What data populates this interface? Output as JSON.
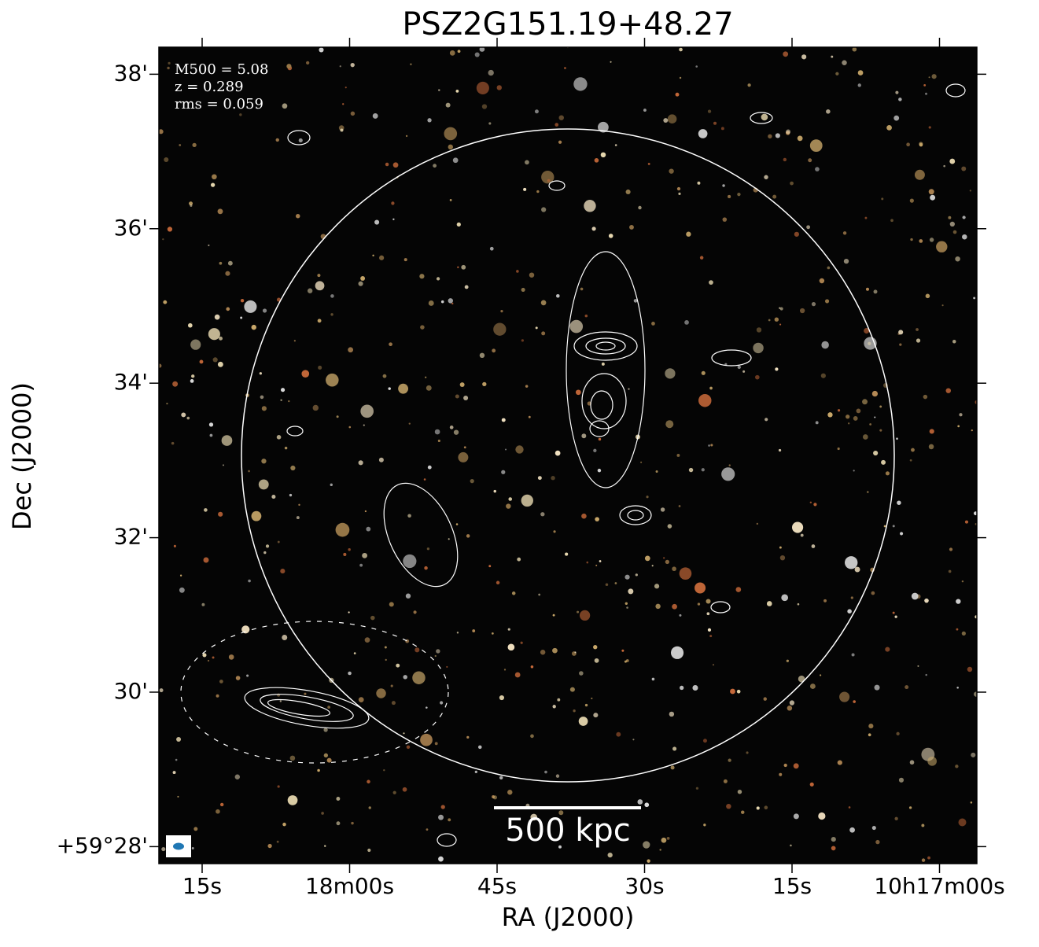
{
  "chart_data": {
    "type": "image",
    "title": "PSZ2G151.19+48.27",
    "xlabel": "RA (J2000)",
    "ylabel": "Dec (J2000)",
    "annotations": [
      "M500 = 5.08",
      "z = 0.289",
      "rms = 0.059"
    ],
    "scalebar_label": "500 kpc",
    "xlim": [
      79.4,
      -3.8
    ],
    "xticks": [
      {
        "value": 75,
        "label": "15s"
      },
      {
        "value": 60,
        "label": "18m00s"
      },
      {
        "value": 45,
        "label": "45s"
      },
      {
        "value": 30,
        "label": "30s"
      },
      {
        "value": 15,
        "label": "15s"
      },
      {
        "value": 0,
        "label": "10h17m00s"
      }
    ],
    "ylim": [
      27.78,
      38.35
    ],
    "yticks": [
      {
        "value": 28,
        "label": "+59°28'"
      },
      {
        "value": 30,
        "label": "30'"
      },
      {
        "value": 32,
        "label": "32'"
      },
      {
        "value": 34,
        "label": "34'"
      },
      {
        "value": 36,
        "label": "36'"
      },
      {
        "value": 38,
        "label": "38'"
      }
    ]
  }
}
